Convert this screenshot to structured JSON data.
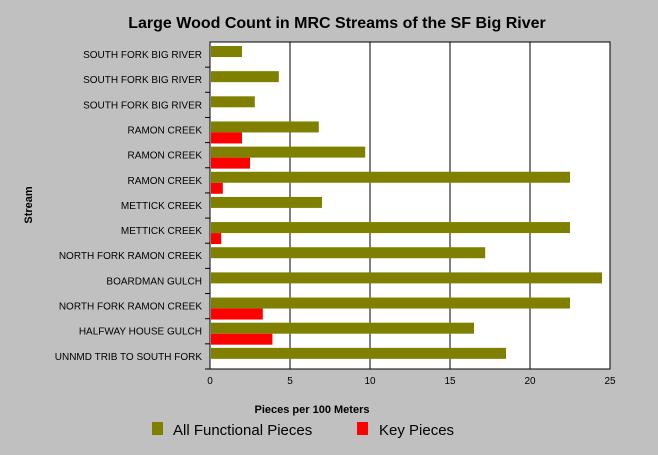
{
  "chart_data": {
    "type": "bar",
    "orientation": "horizontal",
    "title": "Large Wood Count in MRC Streams of the SF Big River",
    "xlabel": "Pieces per 100 Meters",
    "ylabel": "Stream",
    "xlim": [
      0,
      25
    ],
    "xticks": [
      "0",
      "5",
      "10",
      "15",
      "20",
      "25"
    ],
    "grid": "vertical",
    "legend_position": "bottom",
    "categories": [
      "SOUTH FORK BIG RIVER",
      "SOUTH FORK BIG RIVER",
      "SOUTH FORK BIG RIVER",
      "RAMON CREEK",
      "RAMON CREEK",
      "RAMON CREEK",
      "METTICK CREEK",
      "METTICK CREEK",
      "NORTH FORK RAMON CREEK",
      "BOARDMAN GULCH",
      "NORTH FORK RAMON CREEK",
      "HALFWAY HOUSE GULCH",
      "UNNMD TRIB TO SOUTH FORK"
    ],
    "series": [
      {
        "name": "All Functional Pieces",
        "color": "#808000",
        "values": [
          2.0,
          4.3,
          2.8,
          6.8,
          9.7,
          22.5,
          7.0,
          22.5,
          17.2,
          24.5,
          22.5,
          16.5,
          18.5
        ]
      },
      {
        "name": "Key Pieces",
        "color": "#ff0000",
        "values": [
          0,
          0,
          0,
          2.0,
          2.5,
          0.8,
          0,
          0.7,
          0,
          0,
          3.3,
          3.9,
          0
        ]
      }
    ]
  },
  "colors": {
    "page_background": "#c0c0c0",
    "plot_background": "#ffffff",
    "gridline": "#000000"
  }
}
